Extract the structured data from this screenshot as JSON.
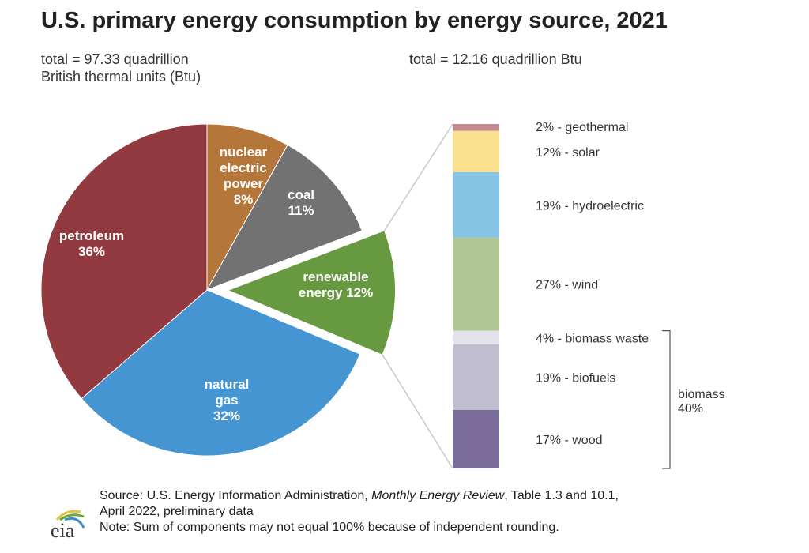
{
  "chart_data": [
    {
      "type": "pie",
      "title": "U.S. primary energy consumption by energy source, 2021",
      "subtitle": "total = 97.33 quadrillion British thermal units (Btu)",
      "subtitle_lines": [
        "total = 97.33 quadrillion",
        "British thermal units (Btu)"
      ],
      "start": "12 o'clock, clockwise",
      "slices": [
        {
          "name": "nuclear electric power",
          "label_lines": [
            "nuclear",
            "electric",
            "power",
            "8%"
          ],
          "value": 8,
          "color": "#b5763a"
        },
        {
          "name": "coal",
          "label_lines": [
            "coal",
            "11%"
          ],
          "value": 11,
          "color": "#727272"
        },
        {
          "name": "renewable energy",
          "label_lines": [
            "renewable",
            "energy 12%"
          ],
          "value": 12,
          "color": "#679a40",
          "exploded": true
        },
        {
          "name": "natural gas",
          "label_lines": [
            "natural",
            "gas",
            "32%"
          ],
          "value": 32,
          "color": "#4495d1"
        },
        {
          "name": "petroleum",
          "label_lines": [
            "petroleum",
            "36%"
          ],
          "value": 36,
          "color": "#923a40"
        }
      ]
    },
    {
      "type": "bar",
      "orientation": "stacked-vertical",
      "subtitle": "total = 12.16 quadrillion Btu",
      "segments": [
        {
          "name": "geothermal",
          "label": "2% - geothermal",
          "value": 2,
          "color": "#c68a90"
        },
        {
          "name": "solar",
          "label": "12% - solar",
          "value": 12,
          "color": "#f8e08e"
        },
        {
          "name": "hydroelectric",
          "label": "19% - hydroelectric",
          "value": 19,
          "color": "#86c3e5"
        },
        {
          "name": "wind",
          "label": "27% - wind",
          "value": 27,
          "color": "#aec794"
        },
        {
          "name": "biomass waste",
          "label": "4% - biomass waste",
          "value": 4,
          "color": "#e3e1ea"
        },
        {
          "name": "biofuels",
          "label": "19% - biofuels",
          "value": 19,
          "color": "#c0bdd0"
        },
        {
          "name": "wood",
          "label": "17% - wood",
          "value": 17,
          "color": "#7a6d9a"
        }
      ],
      "group": {
        "label_lines": [
          "biomass",
          "40%"
        ],
        "value": 40,
        "members": [
          "biomass waste",
          "biofuels",
          "wood"
        ]
      }
    }
  ],
  "footer": {
    "source_prefix": "Source: U.S. Energy Information Administration, ",
    "source_italic": "Monthly Energy Review",
    "source_suffix": ", Table 1.3 and 10.1,",
    "source_line2": "April 2022, preliminary data",
    "note": "Note: Sum of components may not equal 100% because of independent rounding."
  },
  "logo": {
    "text": "eia"
  }
}
